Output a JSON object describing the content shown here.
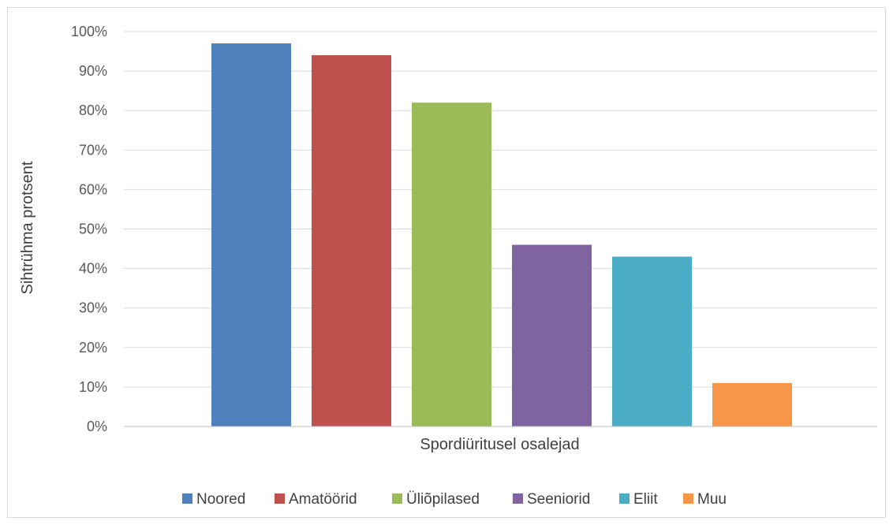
{
  "chart_data": {
    "type": "bar",
    "title": "",
    "xlabel": "Spordiüritusel osalejad",
    "ylabel": "Sihtrühma protsent",
    "ylim": [
      0,
      100
    ],
    "yticks": [
      "0%",
      "10%",
      "20%",
      "30%",
      "40%",
      "50%",
      "60%",
      "70%",
      "80%",
      "90%",
      "100%"
    ],
    "grid": true,
    "legend_position": "bottom",
    "series": [
      {
        "name": "Noored",
        "value": 97,
        "color": "#4F81BD"
      },
      {
        "name": "Amatöörid",
        "value": 94,
        "color": "#C0504D"
      },
      {
        "name": "Üliõpilased",
        "value": 82,
        "color": "#9BBB59"
      },
      {
        "name": "Seeniorid",
        "value": 46,
        "color": "#8064A2"
      },
      {
        "name": "Eliit",
        "value": 43,
        "color": "#4BACC6"
      },
      {
        "name": "Muu",
        "value": 11,
        "color": "#F79646"
      }
    ]
  }
}
